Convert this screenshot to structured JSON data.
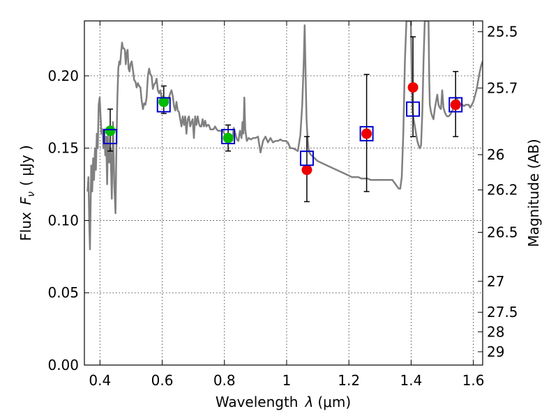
{
  "chart_data": {
    "type": "scatter",
    "xlabel": "Wavelength",
    "xlabel_symbol": "λ",
    "xlabel_unit": "(μm)",
    "ylabel": "Flux",
    "ylabel_symbol": "F",
    "ylabel_sub": "ν",
    "ylabel_unit": "( μJy )",
    "y2label": "Magnitude (AB)",
    "xlim": [
      0.35,
      1.63
    ],
    "ylim": [
      0.0,
      0.238
    ],
    "grid": true,
    "x_ticks": [
      0.4,
      0.6,
      0.8,
      1.0,
      1.2,
      1.4,
      1.6
    ],
    "x_tick_labels": [
      "0.4",
      "0.6",
      "0.8",
      "1",
      "1.2",
      "1.4",
      "1.6"
    ],
    "y_ticks": [
      0.0,
      0.05,
      0.1,
      0.15,
      0.2
    ],
    "y_tick_labels": [
      "0.00",
      "0.05",
      "0.10",
      "0.15",
      "0.20"
    ],
    "y2_ticks": [
      {
        "label": "25.5",
        "flux": 0.2305
      },
      {
        "label": "25.7",
        "flux": 0.1916
      },
      {
        "label": "26",
        "flux": 0.1455
      },
      {
        "label": "26.2",
        "flux": 0.1211
      },
      {
        "label": "26.5",
        "flux": 0.0918
      },
      {
        "label": "27",
        "flux": 0.0579
      },
      {
        "label": "27.5",
        "flux": 0.0365
      },
      {
        "label": "28",
        "flux": 0.023
      },
      {
        "label": "29",
        "flux": 0.0092
      }
    ],
    "series": [
      {
        "type": "line",
        "color": "#808080",
        "x": [
          0.36,
          0.363,
          0.366,
          0.368,
          0.37,
          0.372,
          0.375,
          0.378,
          0.381,
          0.384,
          0.387,
          0.39,
          0.393,
          0.396,
          0.399,
          0.402,
          0.405,
          0.408,
          0.411,
          0.414,
          0.417,
          0.42,
          0.423,
          0.426,
          0.43,
          0.434,
          0.438,
          0.442,
          0.446,
          0.45,
          0.453,
          0.456,
          0.459,
          0.462,
          0.465,
          0.468,
          0.471,
          0.474,
          0.477,
          0.48,
          0.483,
          0.486,
          0.489,
          0.492,
          0.495,
          0.498,
          0.502,
          0.506,
          0.51,
          0.514,
          0.518,
          0.522,
          0.526,
          0.53,
          0.534,
          0.538,
          0.542,
          0.546,
          0.55,
          0.554,
          0.558,
          0.562,
          0.566,
          0.57,
          0.574,
          0.578,
          0.582,
          0.586,
          0.59,
          0.594,
          0.598,
          0.602,
          0.606,
          0.61,
          0.614,
          0.618,
          0.622,
          0.626,
          0.63,
          0.634,
          0.638,
          0.642,
          0.646,
          0.65,
          0.654,
          0.658,
          0.662,
          0.666,
          0.67,
          0.674,
          0.678,
          0.682,
          0.686,
          0.69,
          0.694,
          0.698,
          0.702,
          0.706,
          0.71,
          0.714,
          0.718,
          0.722,
          0.726,
          0.73,
          0.734,
          0.738,
          0.742,
          0.746,
          0.75,
          0.755,
          0.76,
          0.765,
          0.77,
          0.775,
          0.78,
          0.785,
          0.79,
          0.795,
          0.8,
          0.805,
          0.81,
          0.815,
          0.82,
          0.825,
          0.83,
          0.835,
          0.84,
          0.845,
          0.85,
          0.855,
          0.858,
          0.861,
          0.864,
          0.867,
          0.872,
          0.878,
          0.885,
          0.892,
          0.9,
          0.908,
          0.916,
          0.924,
          0.932,
          0.94,
          0.948,
          0.956,
          0.964,
          0.972,
          0.98,
          0.988,
          0.996,
          1.004,
          1.012,
          1.02,
          1.028,
          1.036,
          1.044,
          1.05,
          1.055,
          1.058,
          1.061,
          1.064,
          1.067,
          1.07,
          1.073,
          1.076,
          1.08,
          1.085,
          1.09,
          1.095,
          1.1,
          1.11,
          1.12,
          1.13,
          1.14,
          1.15,
          1.16,
          1.17,
          1.18,
          1.19,
          1.2,
          1.21,
          1.22,
          1.23,
          1.24,
          1.25,
          1.26,
          1.27,
          1.28,
          1.29,
          1.3,
          1.31,
          1.32,
          1.33,
          1.34,
          1.35,
          1.36,
          1.365,
          1.37,
          1.375,
          1.38,
          1.385,
          1.39,
          1.393,
          1.396,
          1.399,
          1.402,
          1.405,
          1.408,
          1.412,
          1.416,
          1.42,
          1.424,
          1.428,
          1.432,
          1.436,
          1.44,
          1.444,
          1.446,
          1.448,
          1.45,
          1.452,
          1.454,
          1.456,
          1.458,
          1.46,
          1.464,
          1.468,
          1.472,
          1.476,
          1.48,
          1.484,
          1.488,
          1.492,
          1.496,
          1.5,
          1.504,
          1.508,
          1.512,
          1.516,
          1.52,
          1.525,
          1.53,
          1.535,
          1.54,
          1.545,
          1.55,
          1.555,
          1.56,
          1.565,
          1.57,
          1.575,
          1.58,
          1.585,
          1.59,
          1.595,
          1.6,
          1.605,
          1.61,
          1.615,
          1.62,
          1.625,
          1.63
        ],
        "y": [
          0.12,
          0.13,
          0.095,
          0.08,
          0.11,
          0.138,
          0.12,
          0.143,
          0.128,
          0.15,
          0.135,
          0.16,
          0.15,
          0.18,
          0.185,
          0.172,
          0.16,
          0.163,
          0.15,
          0.163,
          0.145,
          0.158,
          0.125,
          0.16,
          0.14,
          0.15,
          0.115,
          0.168,
          0.125,
          0.105,
          0.15,
          0.185,
          0.205,
          0.21,
          0.208,
          0.216,
          0.223,
          0.219,
          0.219,
          0.218,
          0.208,
          0.216,
          0.218,
          0.205,
          0.203,
          0.208,
          0.21,
          0.204,
          0.197,
          0.196,
          0.192,
          0.195,
          0.193,
          0.192,
          0.183,
          0.177,
          0.181,
          0.18,
          0.185,
          0.2,
          0.205,
          0.201,
          0.2,
          0.191,
          0.194,
          0.195,
          0.198,
          0.19,
          0.188,
          0.19,
          0.185,
          0.186,
          0.183,
          0.185,
          0.181,
          0.183,
          0.185,
          0.188,
          0.19,
          0.186,
          0.179,
          0.176,
          0.182,
          0.176,
          0.175,
          0.17,
          0.165,
          0.172,
          0.166,
          0.172,
          0.16,
          0.17,
          0.172,
          0.165,
          0.168,
          0.17,
          0.157,
          0.172,
          0.166,
          0.172,
          0.167,
          0.165,
          0.165,
          0.17,
          0.165,
          0.169,
          0.165,
          0.166,
          0.166,
          0.163,
          0.163,
          0.163,
          0.165,
          0.163,
          0.162,
          0.162,
          0.162,
          0.162,
          0.16,
          0.159,
          0.16,
          0.158,
          0.158,
          0.155,
          0.164,
          0.16,
          0.156,
          0.155,
          0.162,
          0.157,
          0.168,
          0.16,
          0.185,
          0.163,
          0.155,
          0.157,
          0.156,
          0.157,
          0.157,
          0.158,
          0.147,
          0.155,
          0.158,
          0.154,
          0.157,
          0.154,
          0.155,
          0.155,
          0.156,
          0.155,
          0.155,
          0.154,
          0.15,
          0.15,
          0.149,
          0.148,
          0.159,
          0.18,
          0.21,
          0.235,
          0.2,
          0.17,
          0.158,
          0.15,
          0.147,
          0.146,
          0.145,
          0.144,
          0.143,
          0.142,
          0.141,
          0.14,
          0.139,
          0.138,
          0.137,
          0.136,
          0.135,
          0.134,
          0.133,
          0.132,
          0.131,
          0.13,
          0.13,
          0.13,
          0.129,
          0.129,
          0.129,
          0.128,
          0.128,
          0.128,
          0.128,
          0.128,
          0.128,
          0.128,
          0.128,
          0.125,
          0.122,
          0.122,
          0.13,
          0.16,
          0.21,
          0.238,
          0.238,
          0.238,
          0.238,
          0.238,
          0.2,
          0.175,
          0.17,
          0.165,
          0.16,
          0.155,
          0.152,
          0.15,
          0.152,
          0.175,
          0.21,
          0.238,
          0.238,
          0.238,
          0.238,
          0.238,
          0.238,
          0.238,
          0.2,
          0.18,
          0.175,
          0.172,
          0.17,
          0.177,
          0.182,
          0.187,
          0.18,
          0.178,
          0.177,
          0.19,
          0.178,
          0.175,
          0.173,
          0.172,
          0.172,
          0.173,
          0.175,
          0.177,
          0.181,
          0.185,
          0.183,
          0.182,
          0.18,
          0.18,
          0.179,
          0.18,
          0.18,
          0.18,
          0.178,
          0.18,
          0.182,
          0.186,
          0.19,
          0.196,
          0.202,
          0.207,
          0.21
        ]
      },
      {
        "type": "errorbar",
        "marker": "circle",
        "color": "#00bb00",
        "x": [
          0.433,
          0.605,
          0.812
        ],
        "y": [
          0.162,
          0.182,
          0.157
        ],
        "yerr_low": [
          0.148,
          0.174,
          0.148
        ],
        "yerr_high": [
          0.177,
          0.193,
          0.166
        ]
      },
      {
        "type": "errorbar",
        "marker": "circle",
        "color": "#ee0000",
        "x": [
          1.065,
          1.257,
          1.406,
          1.543
        ],
        "y": [
          0.135,
          0.16,
          0.192,
          0.18
        ],
        "yerr_low": [
          0.113,
          0.12,
          0.158,
          0.158
        ],
        "yerr_high": [
          0.158,
          0.201,
          0.227,
          0.203
        ]
      },
      {
        "type": "scatter",
        "marker": "open-square",
        "color": "#0000cc",
        "x": [
          0.433,
          0.605,
          0.812,
          1.065,
          1.257,
          1.406,
          1.543
        ],
        "y": [
          0.158,
          0.18,
          0.158,
          0.143,
          0.16,
          0.177,
          0.18
        ]
      }
    ]
  }
}
